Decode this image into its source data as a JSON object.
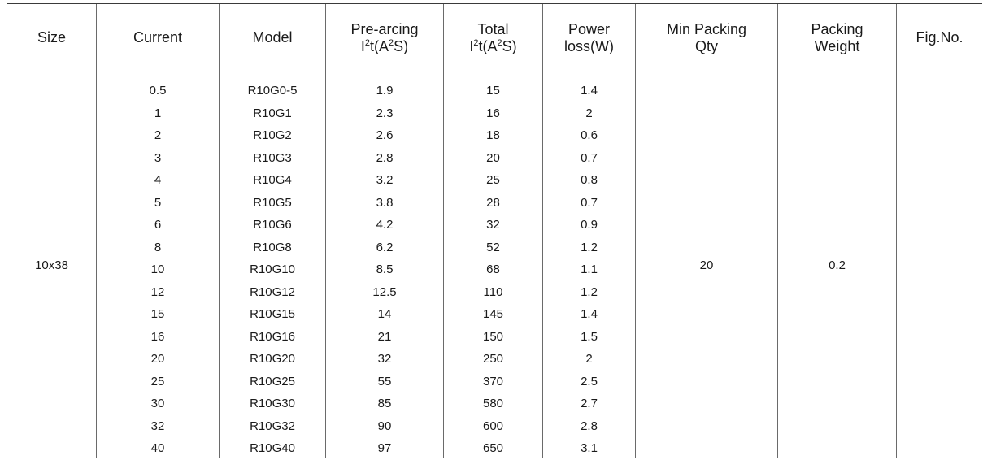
{
  "headers": {
    "size": "Size",
    "current": "Current",
    "model": "Model",
    "pre_arcing_line1": "Pre-arcing",
    "pre_arcing_line2_pre": "I",
    "pre_arcing_line2_sup1": "2",
    "pre_arcing_line2_mid": "t(A",
    "pre_arcing_line2_sup2": "2",
    "pre_arcing_line2_post": "S)",
    "total_line1": "Total",
    "total_line2_pre": "I",
    "total_line2_sup1": "2",
    "total_line2_mid": "t(A",
    "total_line2_sup2": "2",
    "total_line2_post": "S)",
    "power_line1": "Power",
    "power_line2": "loss(W)",
    "min_packing_line1": "Min Packing",
    "min_packing_line2": "Qty",
    "packing_weight_line1": "Packing",
    "packing_weight_line2": "Weight",
    "fig_no": "Fig.No."
  },
  "size_value": "10x38",
  "min_packing_qty": "20",
  "packing_weight": "0.2",
  "fig_no_value": "",
  "rows": [
    {
      "current": "0.5",
      "model": "R10G0-5",
      "pre": "1.9",
      "total": "15",
      "power": "1.4"
    },
    {
      "current": "1",
      "model": "R10G1",
      "pre": "2.3",
      "total": "16",
      "power": "2"
    },
    {
      "current": "2",
      "model": "R10G2",
      "pre": "2.6",
      "total": "18",
      "power": "0.6"
    },
    {
      "current": "3",
      "model": "R10G3",
      "pre": "2.8",
      "total": "20",
      "power": "0.7"
    },
    {
      "current": "4",
      "model": "R10G4",
      "pre": "3.2",
      "total": "25",
      "power": "0.8"
    },
    {
      "current": "5",
      "model": "R10G5",
      "pre": "3.8",
      "total": "28",
      "power": "0.7"
    },
    {
      "current": "6",
      "model": "R10G6",
      "pre": "4.2",
      "total": "32",
      "power": "0.9"
    },
    {
      "current": "8",
      "model": "R10G8",
      "pre": "6.2",
      "total": "52",
      "power": "1.2"
    },
    {
      "current": "10",
      "model": "R10G10",
      "pre": "8.5",
      "total": "68",
      "power": "1.1"
    },
    {
      "current": "12",
      "model": "R10G12",
      "pre": "12.5",
      "total": "110",
      "power": "1.2"
    },
    {
      "current": "15",
      "model": "R10G15",
      "pre": "14",
      "total": "145",
      "power": "1.4"
    },
    {
      "current": "16",
      "model": "R10G16",
      "pre": "21",
      "total": "150",
      "power": "1.5"
    },
    {
      "current": "20",
      "model": "R10G20",
      "pre": "32",
      "total": "250",
      "power": "2"
    },
    {
      "current": "25",
      "model": "R10G25",
      "pre": "55",
      "total": "370",
      "power": "2.5"
    },
    {
      "current": "30",
      "model": "R10G30",
      "pre": "85",
      "total": "580",
      "power": "2.7"
    },
    {
      "current": "32",
      "model": "R10G32",
      "pre": "90",
      "total": "600",
      "power": "2.8"
    },
    {
      "current": "40",
      "model": "R10G40",
      "pre": "97",
      "total": "650",
      "power": "3.1"
    }
  ]
}
